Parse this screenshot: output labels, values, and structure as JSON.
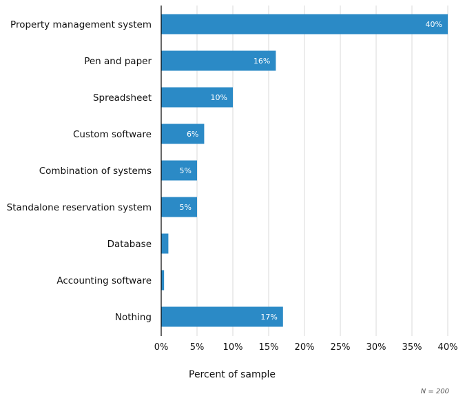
{
  "chart_data": {
    "type": "bar",
    "orientation": "horizontal",
    "categories": [
      "Property management system",
      "Pen and paper",
      "Spreadsheet",
      "Custom software",
      "Combination of systems",
      "Standalone reservation system",
      "Database",
      "Accounting software",
      "Nothing"
    ],
    "values": [
      40,
      16,
      10,
      6,
      5,
      5,
      1,
      0.4,
      17
    ],
    "data_labels": [
      "40%",
      "16%",
      "10%",
      "6%",
      "5%",
      "5%",
      "",
      "",
      "17%"
    ],
    "xlabel": "Percent of sample",
    "ylabel": "",
    "xlim": [
      0,
      40
    ],
    "xticks": [
      0,
      5,
      10,
      15,
      20,
      25,
      30,
      35,
      40
    ],
    "xtick_labels": [
      "0%",
      "5%",
      "10%",
      "15%",
      "20%",
      "25%",
      "30%",
      "35%",
      "40%"
    ],
    "grid": true,
    "note": "N = 200",
    "colors": {
      "bar": "#2b8ac6",
      "grid": "#d9d9d9",
      "axis": "#000000",
      "label_inside": "#ffffff"
    }
  }
}
